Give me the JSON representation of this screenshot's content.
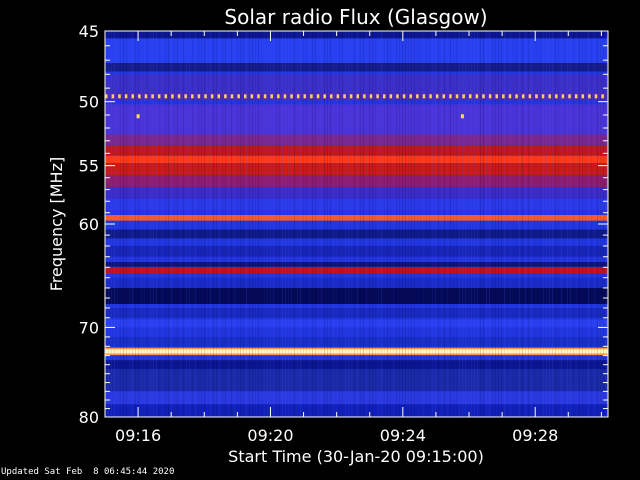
{
  "footer_text": "Updated Sat Feb  8 06:45:44 2020",
  "chart_data": {
    "type": "heatmap",
    "title": "Solar radio Flux (Glasgow)",
    "xlabel": "Start Time (30-Jan-20 09:15:00)",
    "ylabel": "Frequency [MHz]",
    "x_unit": "minutes after 09:15:00",
    "xlim": [
      0,
      15.2
    ],
    "ylim": [
      45,
      80
    ],
    "y_scale": "log",
    "x_ticks": [
      {
        "value": 1,
        "label": "09:16"
      },
      {
        "value": 5,
        "label": "09:20"
      },
      {
        "value": 9,
        "label": "09:24"
      },
      {
        "value": 13,
        "label": "09:28"
      }
    ],
    "y_ticks": [
      {
        "value": 45,
        "label": "45"
      },
      {
        "value": 50,
        "label": "50"
      },
      {
        "value": 55,
        "label": "55"
      },
      {
        "value": 60,
        "label": "60"
      },
      {
        "value": 70,
        "label": "70"
      },
      {
        "value": 80,
        "label": "80"
      }
    ],
    "colormap": [
      "#000060",
      "#1020d0",
      "#2a3cf0",
      "#7030a8",
      "#b81818",
      "#ff3818",
      "#ff8a30",
      "#fff6c0"
    ],
    "background_color": "#2236e0",
    "bands": [
      {
        "freq_from": 45.0,
        "freq_to": 45.5,
        "color": "#0c1690"
      },
      {
        "freq_from": 45.5,
        "freq_to": 47.2,
        "color": "#2840f0"
      },
      {
        "freq_from": 47.2,
        "freq_to": 47.8,
        "color": "#161c8c"
      },
      {
        "freq_from": 48.0,
        "freq_to": 49.3,
        "color": "#3a30c8"
      },
      {
        "freq_from": 49.3,
        "freq_to": 49.9,
        "color": "#4a2ab8"
      },
      {
        "freq_from": 50.2,
        "freq_to": 52.5,
        "color": "#4a34d8"
      },
      {
        "freq_from": 52.5,
        "freq_to": 53.4,
        "color": "#7a2890"
      },
      {
        "freq_from": 53.4,
        "freq_to": 54.2,
        "color": "#c01818"
      },
      {
        "freq_from": 54.2,
        "freq_to": 54.8,
        "color": "#ff3a1a"
      },
      {
        "freq_from": 54.8,
        "freq_to": 55.8,
        "color": "#c81a1a"
      },
      {
        "freq_from": 55.8,
        "freq_to": 56.8,
        "color": "#901c70"
      },
      {
        "freq_from": 56.8,
        "freq_to": 57.8,
        "color": "#3a2cc8"
      },
      {
        "freq_from": 57.8,
        "freq_to": 58.8,
        "color": "#2a3ae8"
      },
      {
        "freq_from": 59.2,
        "freq_to": 59.7,
        "color": "#ff5a20"
      },
      {
        "freq_from": 60.5,
        "freq_to": 61.3,
        "color": "#101a88"
      },
      {
        "freq_from": 62.0,
        "freq_to": 63.0,
        "color": "#1826b8"
      },
      {
        "freq_from": 63.5,
        "freq_to": 63.95,
        "color": "#101478"
      },
      {
        "freq_from": 64.0,
        "freq_to": 64.6,
        "color": "#c0141c"
      },
      {
        "freq_from": 65.0,
        "freq_to": 66.0,
        "color": "#1a2cc8"
      },
      {
        "freq_from": 66.0,
        "freq_to": 67.6,
        "color": "#050a58"
      },
      {
        "freq_from": 68.0,
        "freq_to": 69.0,
        "color": "#182ac0"
      },
      {
        "freq_from": 69.2,
        "freq_to": 70.0,
        "color": "#2a40f0"
      },
      {
        "freq_from": 71.0,
        "freq_to": 72.0,
        "color": "#1a2ec8"
      },
      {
        "freq_from": 72.15,
        "freq_to": 72.3,
        "color": "#ffa040"
      },
      {
        "freq_from": 72.3,
        "freq_to": 72.8,
        "color": "#fff6c0"
      },
      {
        "freq_from": 72.8,
        "freq_to": 72.95,
        "color": "#ffa040"
      },
      {
        "freq_from": 73.5,
        "freq_to": 74.5,
        "color": "#0c1690"
      },
      {
        "freq_from": 74.5,
        "freq_to": 77.0,
        "color": "#1a2aa8"
      },
      {
        "freq_from": 77.0,
        "freq_to": 78.5,
        "color": "#2a3ae0"
      },
      {
        "freq_from": 78.5,
        "freq_to": 80.0,
        "color": "#1020b8"
      }
    ],
    "dashed_line": {
      "freq": 49.6,
      "dash_period_min": 0.2,
      "color": "#ffd060"
    },
    "spots": [
      {
        "time_min": 1.0,
        "freq": 51.1,
        "color": "#ffd860"
      },
      {
        "time_min": 10.8,
        "freq": 51.1,
        "color": "#ffd860"
      }
    ]
  }
}
